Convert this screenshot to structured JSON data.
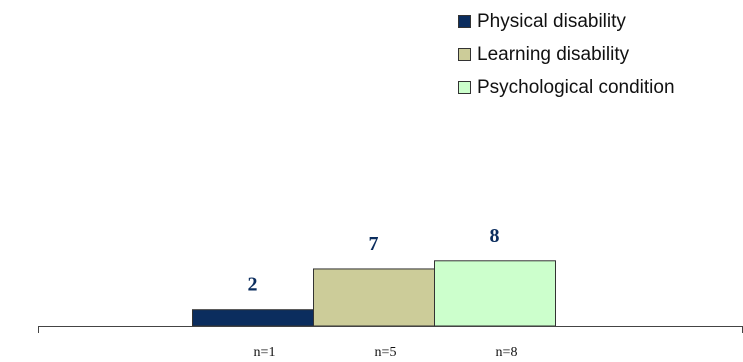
{
  "chart_data": {
    "type": "bar",
    "categories": [
      "n=1",
      "n=5",
      "n=8"
    ],
    "series": [
      {
        "name": "Physical disability",
        "values": [
          2,
          null,
          null
        ],
        "color": "#0b2d5e"
      },
      {
        "name": "Learning disability",
        "values": [
          null,
          7,
          null
        ],
        "color": "#cccc99"
      },
      {
        "name": "Psychological condition",
        "values": [
          null,
          null,
          8
        ],
        "color": "#ccffcc"
      }
    ],
    "data_labels": [
      "2",
      "7",
      "8"
    ],
    "ylim": [
      0,
      40
    ],
    "grid": false,
    "legend": "top-right"
  }
}
